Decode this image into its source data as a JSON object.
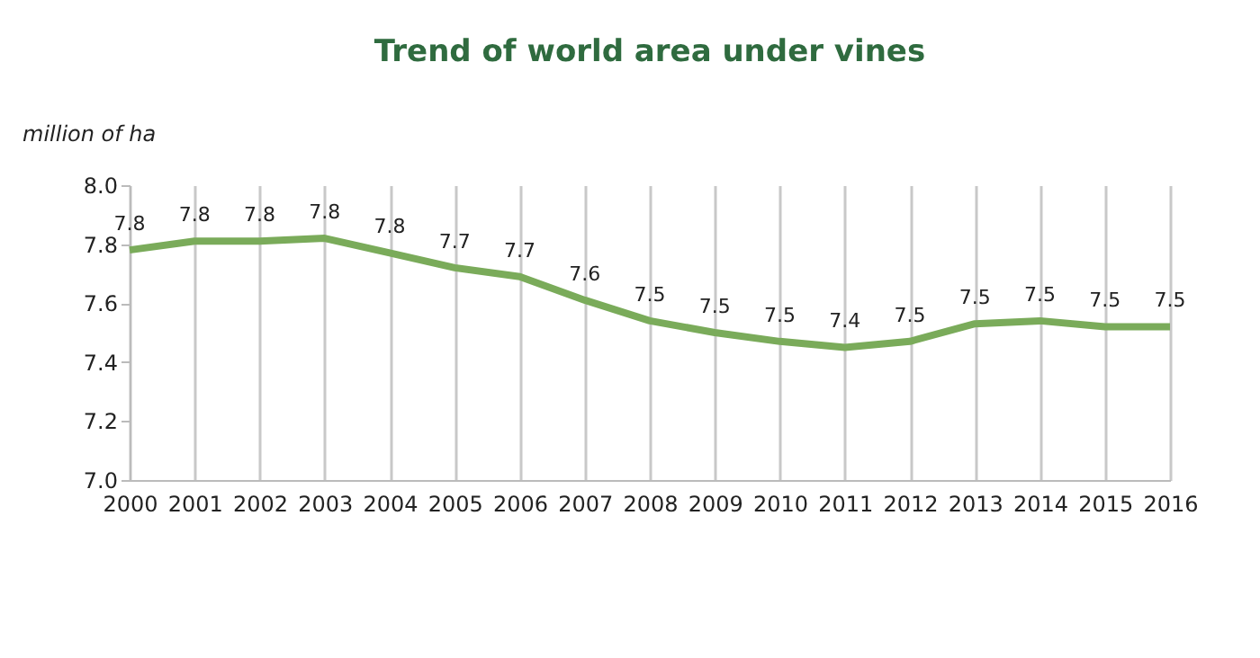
{
  "chart_data": {
    "type": "line",
    "title": "Trend of world area under vines",
    "ylabel": "million of ha",
    "categories": [
      "2000",
      "2001",
      "2002",
      "2003",
      "2004",
      "2005",
      "2006",
      "2007",
      "2008",
      "2009",
      "2010",
      "2011",
      "2012",
      "2013",
      "2014",
      "2015",
      "2016"
    ],
    "series": [
      {
        "color": "#7aab5a",
        "values": [
          7.78,
          7.81,
          7.81,
          7.82,
          7.77,
          7.72,
          7.69,
          7.61,
          7.54,
          7.5,
          7.47,
          7.45,
          7.47,
          7.53,
          7.54,
          7.52,
          7.52
        ],
        "value_labels": [
          "7.8",
          "7.8",
          "7.8",
          "7.8",
          "7.8",
          "7.7",
          "7.7",
          "7.6",
          "7.5",
          "7.5",
          "7.5",
          "7.4",
          "7.5",
          "7.5",
          "7.5",
          "7.5",
          "7.5"
        ]
      }
    ],
    "ylim": [
      7.0,
      8.0
    ],
    "yticks": [
      {
        "value": 7,
        "label": "7.0"
      },
      7.2,
      7.4,
      7.6,
      7.8,
      {
        "value": 8,
        "label": "8.0"
      }
    ],
    "grid": "x",
    "marker": "none",
    "line_style": "solid"
  }
}
